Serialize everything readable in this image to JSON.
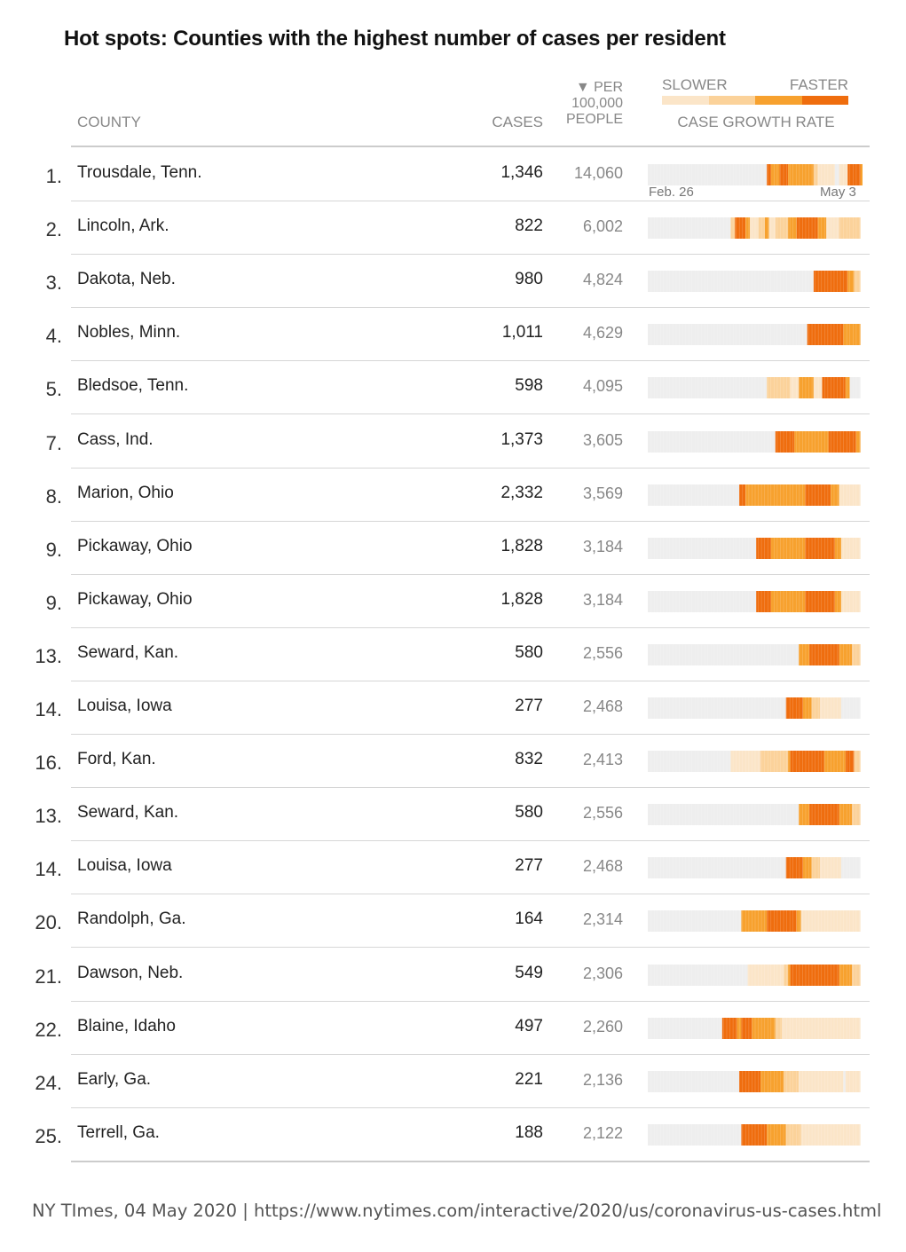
{
  "title": "Hot spots: Counties with the highest number of cases per resident",
  "headers": {
    "county": "COUNTY",
    "cases": "CASES",
    "per_line1": "▼ PER",
    "per_line2": "100,000",
    "per_line3": "PEOPLE",
    "legend_slower": "SLOWER",
    "legend_faster": "FASTER",
    "growth": "CASE GROWTH RATE"
  },
  "axis": {
    "start": "Feb. 26",
    "end": "May 3"
  },
  "source": "NY TImes, 04 May 2020 | https://www.nytimes.com/interactive/2020/us/coronavirus-us-cases.html",
  "colors": {
    "none": "#eeeeee",
    "level1": "#fbe5c8",
    "level2": "#fbd29a",
    "level3": "#f7a12e",
    "level4": "#ef6d0e",
    "level5": "#e8560a"
  },
  "chart_data": {
    "type": "table",
    "columns": [
      "rank",
      "county",
      "cases",
      "per_100000_people",
      "case_growth_rate"
    ],
    "growth_scale": [
      "SLOWER",
      "FASTER"
    ],
    "rows": [
      {
        "rank": "1.",
        "county": "Trousdale, Tenn.",
        "cases": "1,346",
        "per": "14,060",
        "segments": [
          [
            0,
            56,
            0
          ],
          [
            56,
            58,
            4
          ],
          [
            58,
            62,
            3
          ],
          [
            62,
            66,
            4
          ],
          [
            66,
            78,
            3
          ],
          [
            78,
            80,
            2
          ],
          [
            80,
            88,
            1
          ],
          [
            88,
            90,
            0
          ],
          [
            90,
            94,
            1
          ],
          [
            94,
            100,
            4
          ],
          [
            100,
            101,
            3
          ]
        ]
      },
      {
        "rank": "2.",
        "county": "Lincoln, Ark.",
        "cases": "822",
        "per": "6,002",
        "segments": [
          [
            0,
            39,
            0
          ],
          [
            39,
            41,
            2
          ],
          [
            41,
            46,
            4
          ],
          [
            46,
            48,
            3
          ],
          [
            48,
            52,
            1
          ],
          [
            52,
            55,
            2
          ],
          [
            55,
            57,
            3
          ],
          [
            57,
            60,
            1
          ],
          [
            60,
            66,
            2
          ],
          [
            66,
            70,
            3
          ],
          [
            70,
            80,
            4
          ],
          [
            80,
            84,
            3
          ],
          [
            84,
            90,
            1
          ],
          [
            90,
            100,
            2
          ]
        ]
      },
      {
        "rank": "3.",
        "county": "Dakota, Neb.",
        "cases": "980",
        "per": "4,824",
        "segments": [
          [
            0,
            78,
            0
          ],
          [
            78,
            94,
            4
          ],
          [
            94,
            97,
            3
          ],
          [
            97,
            100,
            2
          ]
        ]
      },
      {
        "rank": "4.",
        "county": "Nobles, Minn.",
        "cases": "1,011",
        "per": "4,629",
        "segments": [
          [
            0,
            75,
            0
          ],
          [
            75,
            92,
            4
          ],
          [
            92,
            100,
            3
          ]
        ]
      },
      {
        "rank": "5.",
        "county": "Bledsoe, Tenn.",
        "cases": "598",
        "per": "4,095",
        "segments": [
          [
            0,
            56,
            0
          ],
          [
            56,
            67,
            2
          ],
          [
            67,
            71,
            1
          ],
          [
            71,
            78,
            3
          ],
          [
            78,
            82,
            1
          ],
          [
            82,
            93,
            4
          ],
          [
            93,
            95,
            3
          ],
          [
            95,
            100,
            0
          ]
        ]
      },
      {
        "rank": "7.",
        "county": "Cass, Ind.",
        "cases": "1,373",
        "per": "3,605",
        "segments": [
          [
            0,
            60,
            0
          ],
          [
            60,
            69,
            4
          ],
          [
            69,
            85,
            3
          ],
          [
            85,
            98,
            4
          ],
          [
            98,
            100,
            3
          ]
        ]
      },
      {
        "rank": "8.",
        "county": "Marion, Ohio",
        "cases": "2,332",
        "per": "3,569",
        "segments": [
          [
            0,
            43,
            0
          ],
          [
            43,
            46,
            4
          ],
          [
            46,
            74,
            3
          ],
          [
            74,
            86,
            4
          ],
          [
            86,
            90,
            3
          ],
          [
            90,
            100,
            1
          ]
        ]
      },
      {
        "rank": "9.",
        "county": "Pickaway, Ohio",
        "cases": "1,828",
        "per": "3,184",
        "segments": [
          [
            0,
            51,
            0
          ],
          [
            51,
            58,
            4
          ],
          [
            58,
            74,
            3
          ],
          [
            74,
            88,
            4
          ],
          [
            88,
            91,
            3
          ],
          [
            91,
            100,
            1
          ]
        ]
      },
      {
        "rank": "9.",
        "county": "Pickaway, Ohio",
        "cases": "1,828",
        "per": "3,184",
        "segments": [
          [
            0,
            51,
            0
          ],
          [
            51,
            58,
            4
          ],
          [
            58,
            74,
            3
          ],
          [
            74,
            88,
            4
          ],
          [
            88,
            91,
            3
          ],
          [
            91,
            100,
            1
          ]
        ]
      },
      {
        "rank": "13.",
        "county": "Seward, Kan.",
        "cases": "580",
        "per": "2,556",
        "segments": [
          [
            0,
            71,
            0
          ],
          [
            71,
            76,
            3
          ],
          [
            76,
            90,
            4
          ],
          [
            90,
            96,
            3
          ],
          [
            96,
            100,
            2
          ]
        ]
      },
      {
        "rank": "14.",
        "county": "Louisa, Iowa",
        "cases": "277",
        "per": "2,468",
        "segments": [
          [
            0,
            65,
            0
          ],
          [
            65,
            73,
            4
          ],
          [
            73,
            77,
            3
          ],
          [
            77,
            81,
            2
          ],
          [
            81,
            91,
            1
          ],
          [
            91,
            100,
            0
          ]
        ]
      },
      {
        "rank": "16.",
        "county": "Ford, Kan.",
        "cases": "832",
        "per": "2,413",
        "segments": [
          [
            0,
            39,
            0
          ],
          [
            39,
            53,
            1
          ],
          [
            53,
            66,
            2
          ],
          [
            66,
            67,
            3
          ],
          [
            67,
            83,
            4
          ],
          [
            83,
            93,
            3
          ],
          [
            93,
            97,
            4
          ],
          [
            97,
            100,
            2
          ]
        ]
      },
      {
        "rank": "13.",
        "county": "Seward, Kan.",
        "cases": "580",
        "per": "2,556",
        "segments": [
          [
            0,
            71,
            0
          ],
          [
            71,
            76,
            3
          ],
          [
            76,
            90,
            4
          ],
          [
            90,
            96,
            3
          ],
          [
            96,
            100,
            2
          ]
        ]
      },
      {
        "rank": "14.",
        "county": "Louisa, Iowa",
        "cases": "277",
        "per": "2,468",
        "segments": [
          [
            0,
            65,
            0
          ],
          [
            65,
            73,
            4
          ],
          [
            73,
            77,
            3
          ],
          [
            77,
            81,
            2
          ],
          [
            81,
            91,
            1
          ],
          [
            91,
            100,
            0
          ]
        ]
      },
      {
        "rank": "20.",
        "county": "Randolph, Ga.",
        "cases": "164",
        "per": "2,314",
        "segments": [
          [
            0,
            44,
            0
          ],
          [
            44,
            56,
            3
          ],
          [
            56,
            70,
            4
          ],
          [
            70,
            72,
            3
          ],
          [
            72,
            100,
            1
          ]
        ]
      },
      {
        "rank": "21.",
        "county": "Dawson, Neb.",
        "cases": "549",
        "per": "2,306",
        "segments": [
          [
            0,
            47,
            0
          ],
          [
            47,
            64,
            1
          ],
          [
            64,
            66,
            2
          ],
          [
            66,
            67,
            3
          ],
          [
            67,
            90,
            4
          ],
          [
            90,
            96,
            3
          ],
          [
            96,
            100,
            2
          ]
        ]
      },
      {
        "rank": "22.",
        "county": "Blaine, Idaho",
        "cases": "497",
        "per": "2,260",
        "segments": [
          [
            0,
            35,
            0
          ],
          [
            35,
            42,
            4
          ],
          [
            42,
            44,
            3
          ],
          [
            44,
            49,
            4
          ],
          [
            49,
            60,
            3
          ],
          [
            60,
            63,
            2
          ],
          [
            63,
            100,
            1
          ]
        ]
      },
      {
        "rank": "24.",
        "county": "Early, Ga.",
        "cases": "221",
        "per": "2,136",
        "segments": [
          [
            0,
            43,
            0
          ],
          [
            43,
            53,
            4
          ],
          [
            53,
            64,
            3
          ],
          [
            64,
            71,
            2
          ],
          [
            71,
            92,
            1
          ],
          [
            92,
            93,
            0
          ],
          [
            93,
            100,
            1
          ]
        ]
      },
      {
        "rank": "25.",
        "county": "Terrell, Ga.",
        "cases": "188",
        "per": "2,122",
        "segments": [
          [
            0,
            44,
            0
          ],
          [
            44,
            56,
            4
          ],
          [
            56,
            65,
            3
          ],
          [
            65,
            72,
            2
          ],
          [
            72,
            100,
            1
          ]
        ]
      }
    ]
  }
}
